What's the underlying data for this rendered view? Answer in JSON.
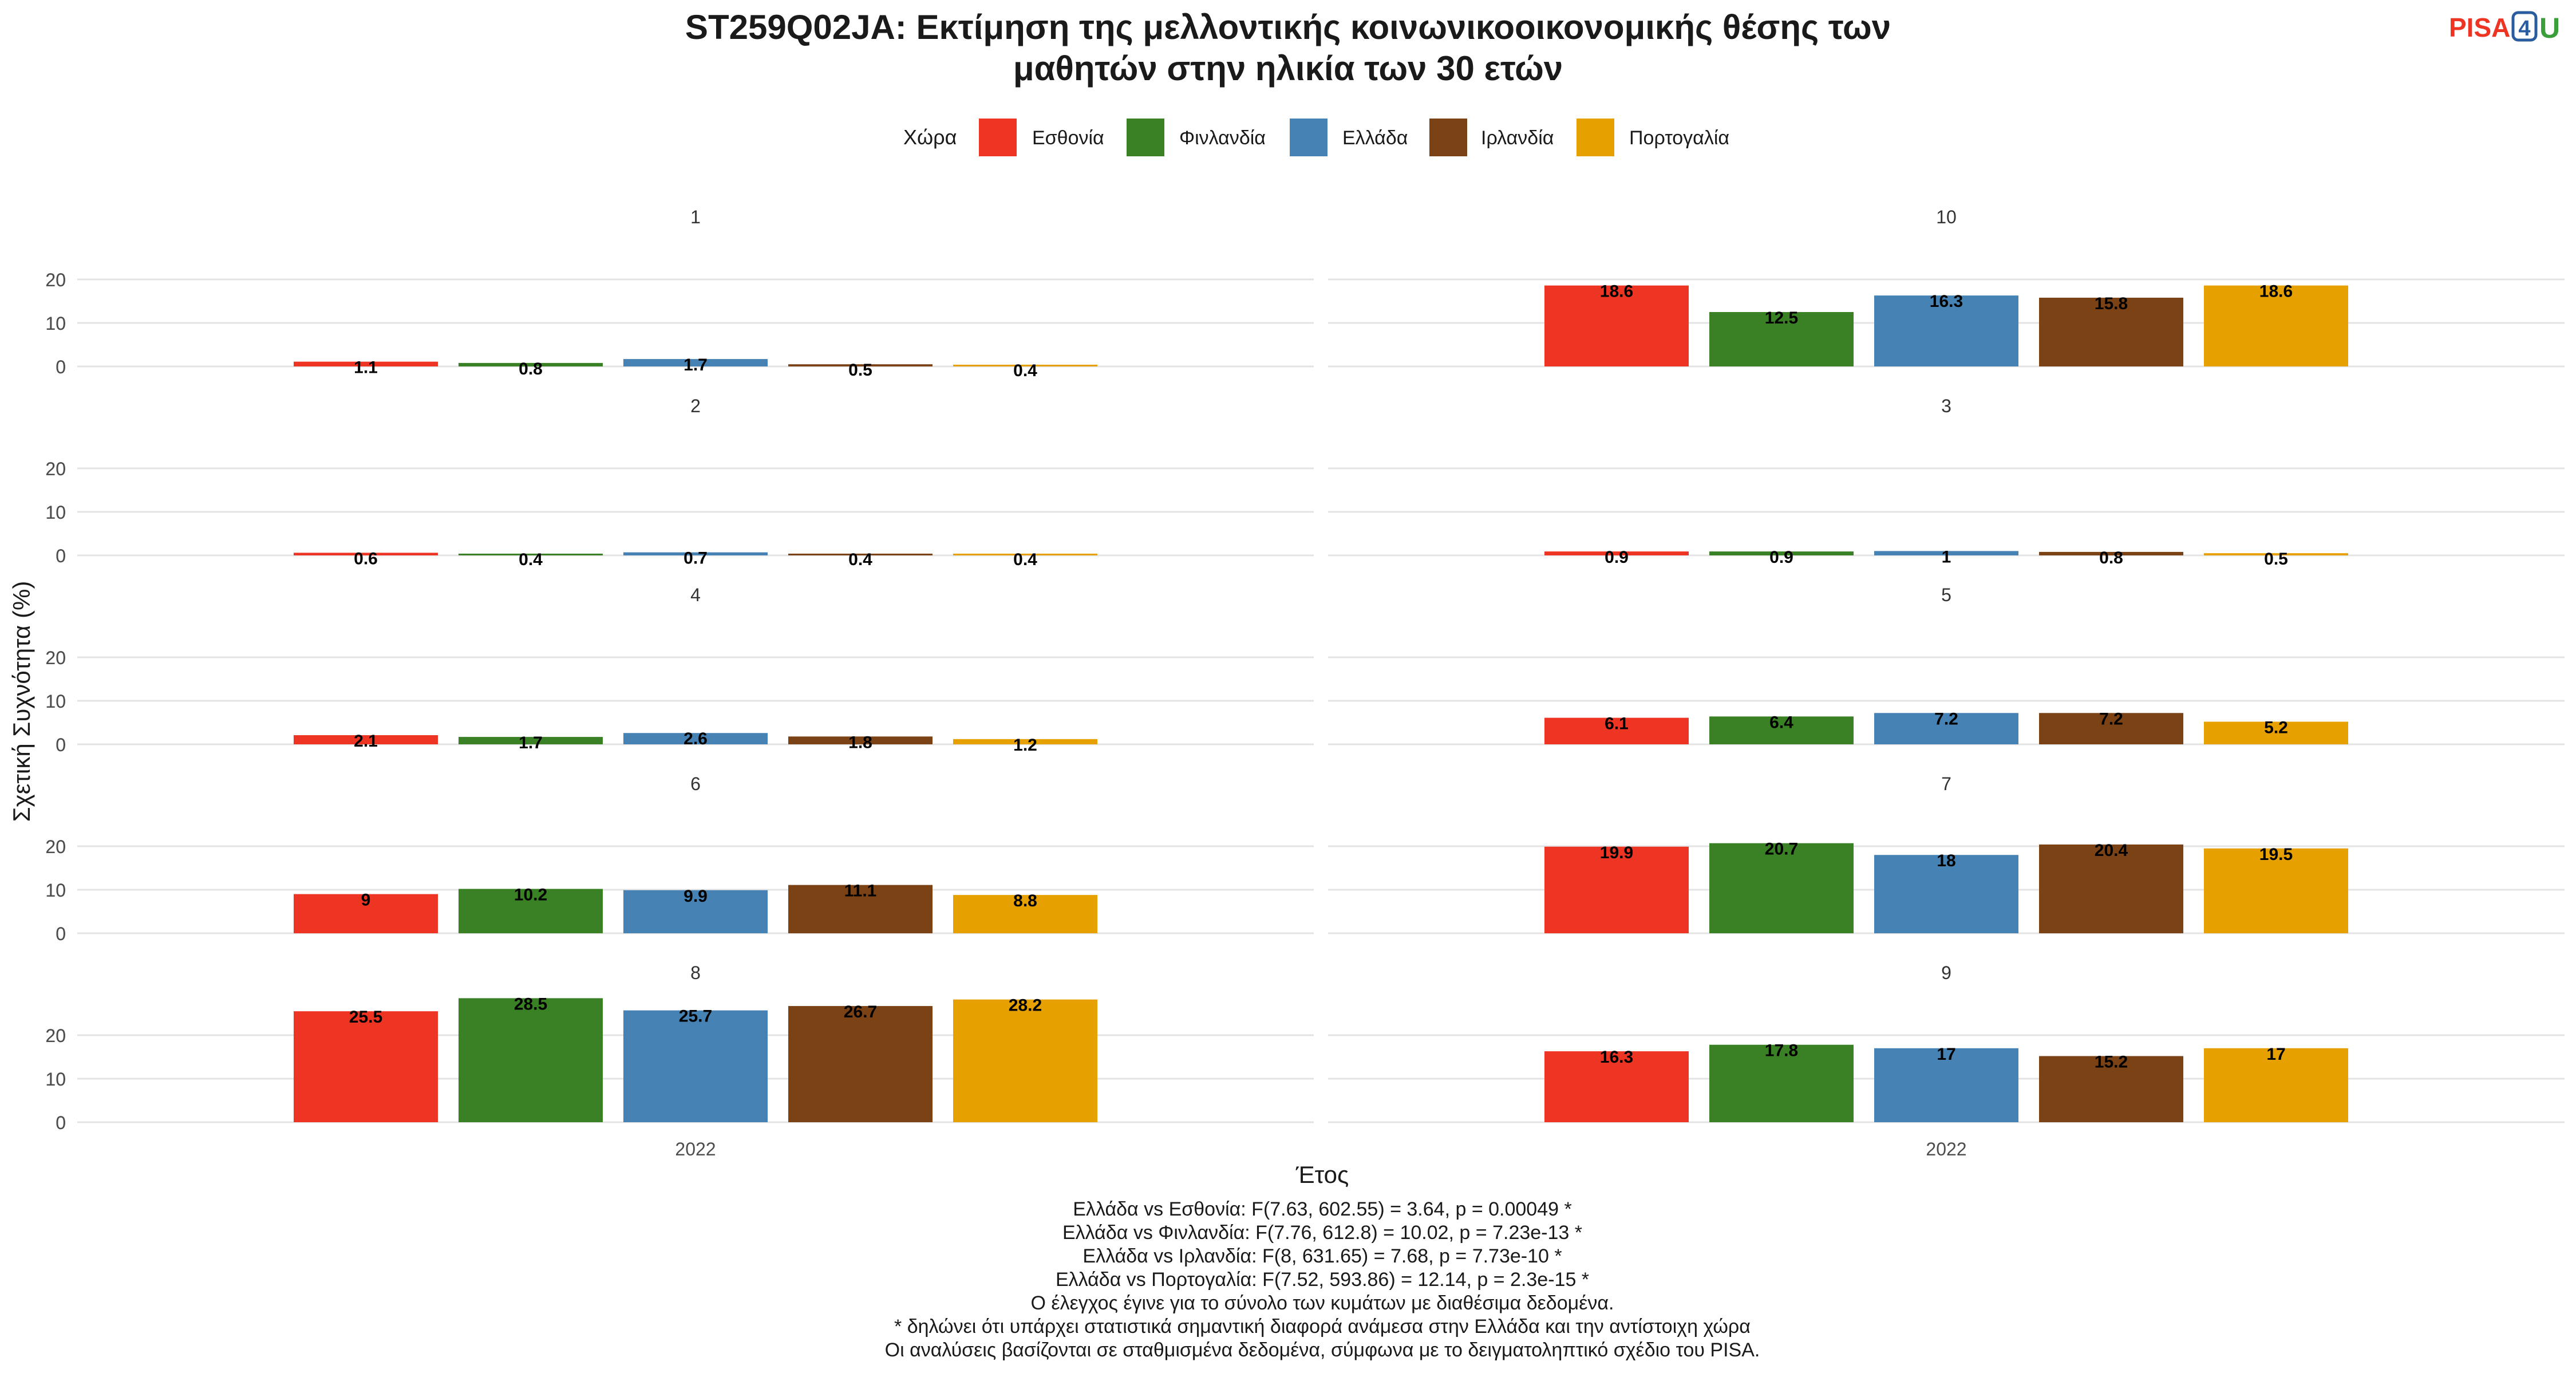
{
  "logo": {
    "text_pisa": "PISA",
    "text_4": "4",
    "text_u": "U"
  },
  "chart_data": {
    "type": "bar",
    "title_line1": "ST259Q02JA: Εκτίμηση της μελλοντικής κοινωνικοοικονομικής θέσης των",
    "title_line2": "μαθητών στην ηλικία των 30 ετών",
    "legend_title": "Χώρα",
    "legend_position": "top",
    "countries": [
      "Εσθονία",
      "Φινλανδία",
      "Ελλάδα",
      "Ιρλανδία",
      "Πορτογαλία"
    ],
    "colors": [
      "#EE3524",
      "#3A8024",
      "#4682B4",
      "#7B4216",
      "#E6A000"
    ],
    "xlabel": "Έτος",
    "ylabel": "Σχετική Συχνότητα (%)",
    "x_tick": "2022",
    "y_ticks": [
      0,
      10,
      20
    ],
    "ylim": [
      0,
      29
    ],
    "grid": true,
    "panels": [
      {
        "label": "1",
        "values": [
          1.1,
          0.8,
          1.7,
          0.5,
          0.4
        ]
      },
      {
        "label": "10",
        "values": [
          18.6,
          12.5,
          16.3,
          15.8,
          18.6
        ]
      },
      {
        "label": "2",
        "values": [
          0.6,
          0.4,
          0.7,
          0.4,
          0.4
        ]
      },
      {
        "label": "3",
        "values": [
          0.9,
          0.9,
          1,
          0.8,
          0.5
        ]
      },
      {
        "label": "4",
        "values": [
          2.1,
          1.7,
          2.6,
          1.8,
          1.2
        ]
      },
      {
        "label": "5",
        "values": [
          6.1,
          6.4,
          7.2,
          7.2,
          5.2
        ]
      },
      {
        "label": "6",
        "values": [
          9,
          10.2,
          9.9,
          11.1,
          8.8
        ]
      },
      {
        "label": "7",
        "values": [
          19.9,
          20.7,
          18,
          20.4,
          19.5
        ]
      },
      {
        "label": "8",
        "values": [
          25.5,
          28.5,
          25.7,
          26.7,
          28.2
        ]
      },
      {
        "label": "9",
        "values": [
          16.3,
          17.8,
          17,
          15.2,
          17
        ]
      }
    ],
    "footnotes": [
      "Ελλάδα vs Εσθονία: F(7.63, 602.55) = 3.64, p = 0.00049 *",
      "Ελλάδα vs Φινλανδία: F(7.76, 612.8) = 10.02, p = 7.23e-13 *",
      "Ελλάδα vs Ιρλανδία: F(8, 631.65) = 7.68, p = 7.73e-10 *",
      "Ελλάδα vs Πορτογαλία: F(7.52, 593.86) = 12.14, p = 2.3e-15 *",
      "Ο έλεγχος έγινε για το σύνολο των κυμάτων με διαθέσιμα δεδομένα.",
      "* δηλώνει ότι υπάρχει στατιστικά σημαντική διαφορά ανάμεσα στην Ελλάδα και την αντίστοιχη χώρα",
      "Οι αναλύσεις βασίζονται σε σταθμισμένα δεδομένα, σύμφωνα με το δειγματοληπτικό σχέδιο του PISA."
    ]
  }
}
